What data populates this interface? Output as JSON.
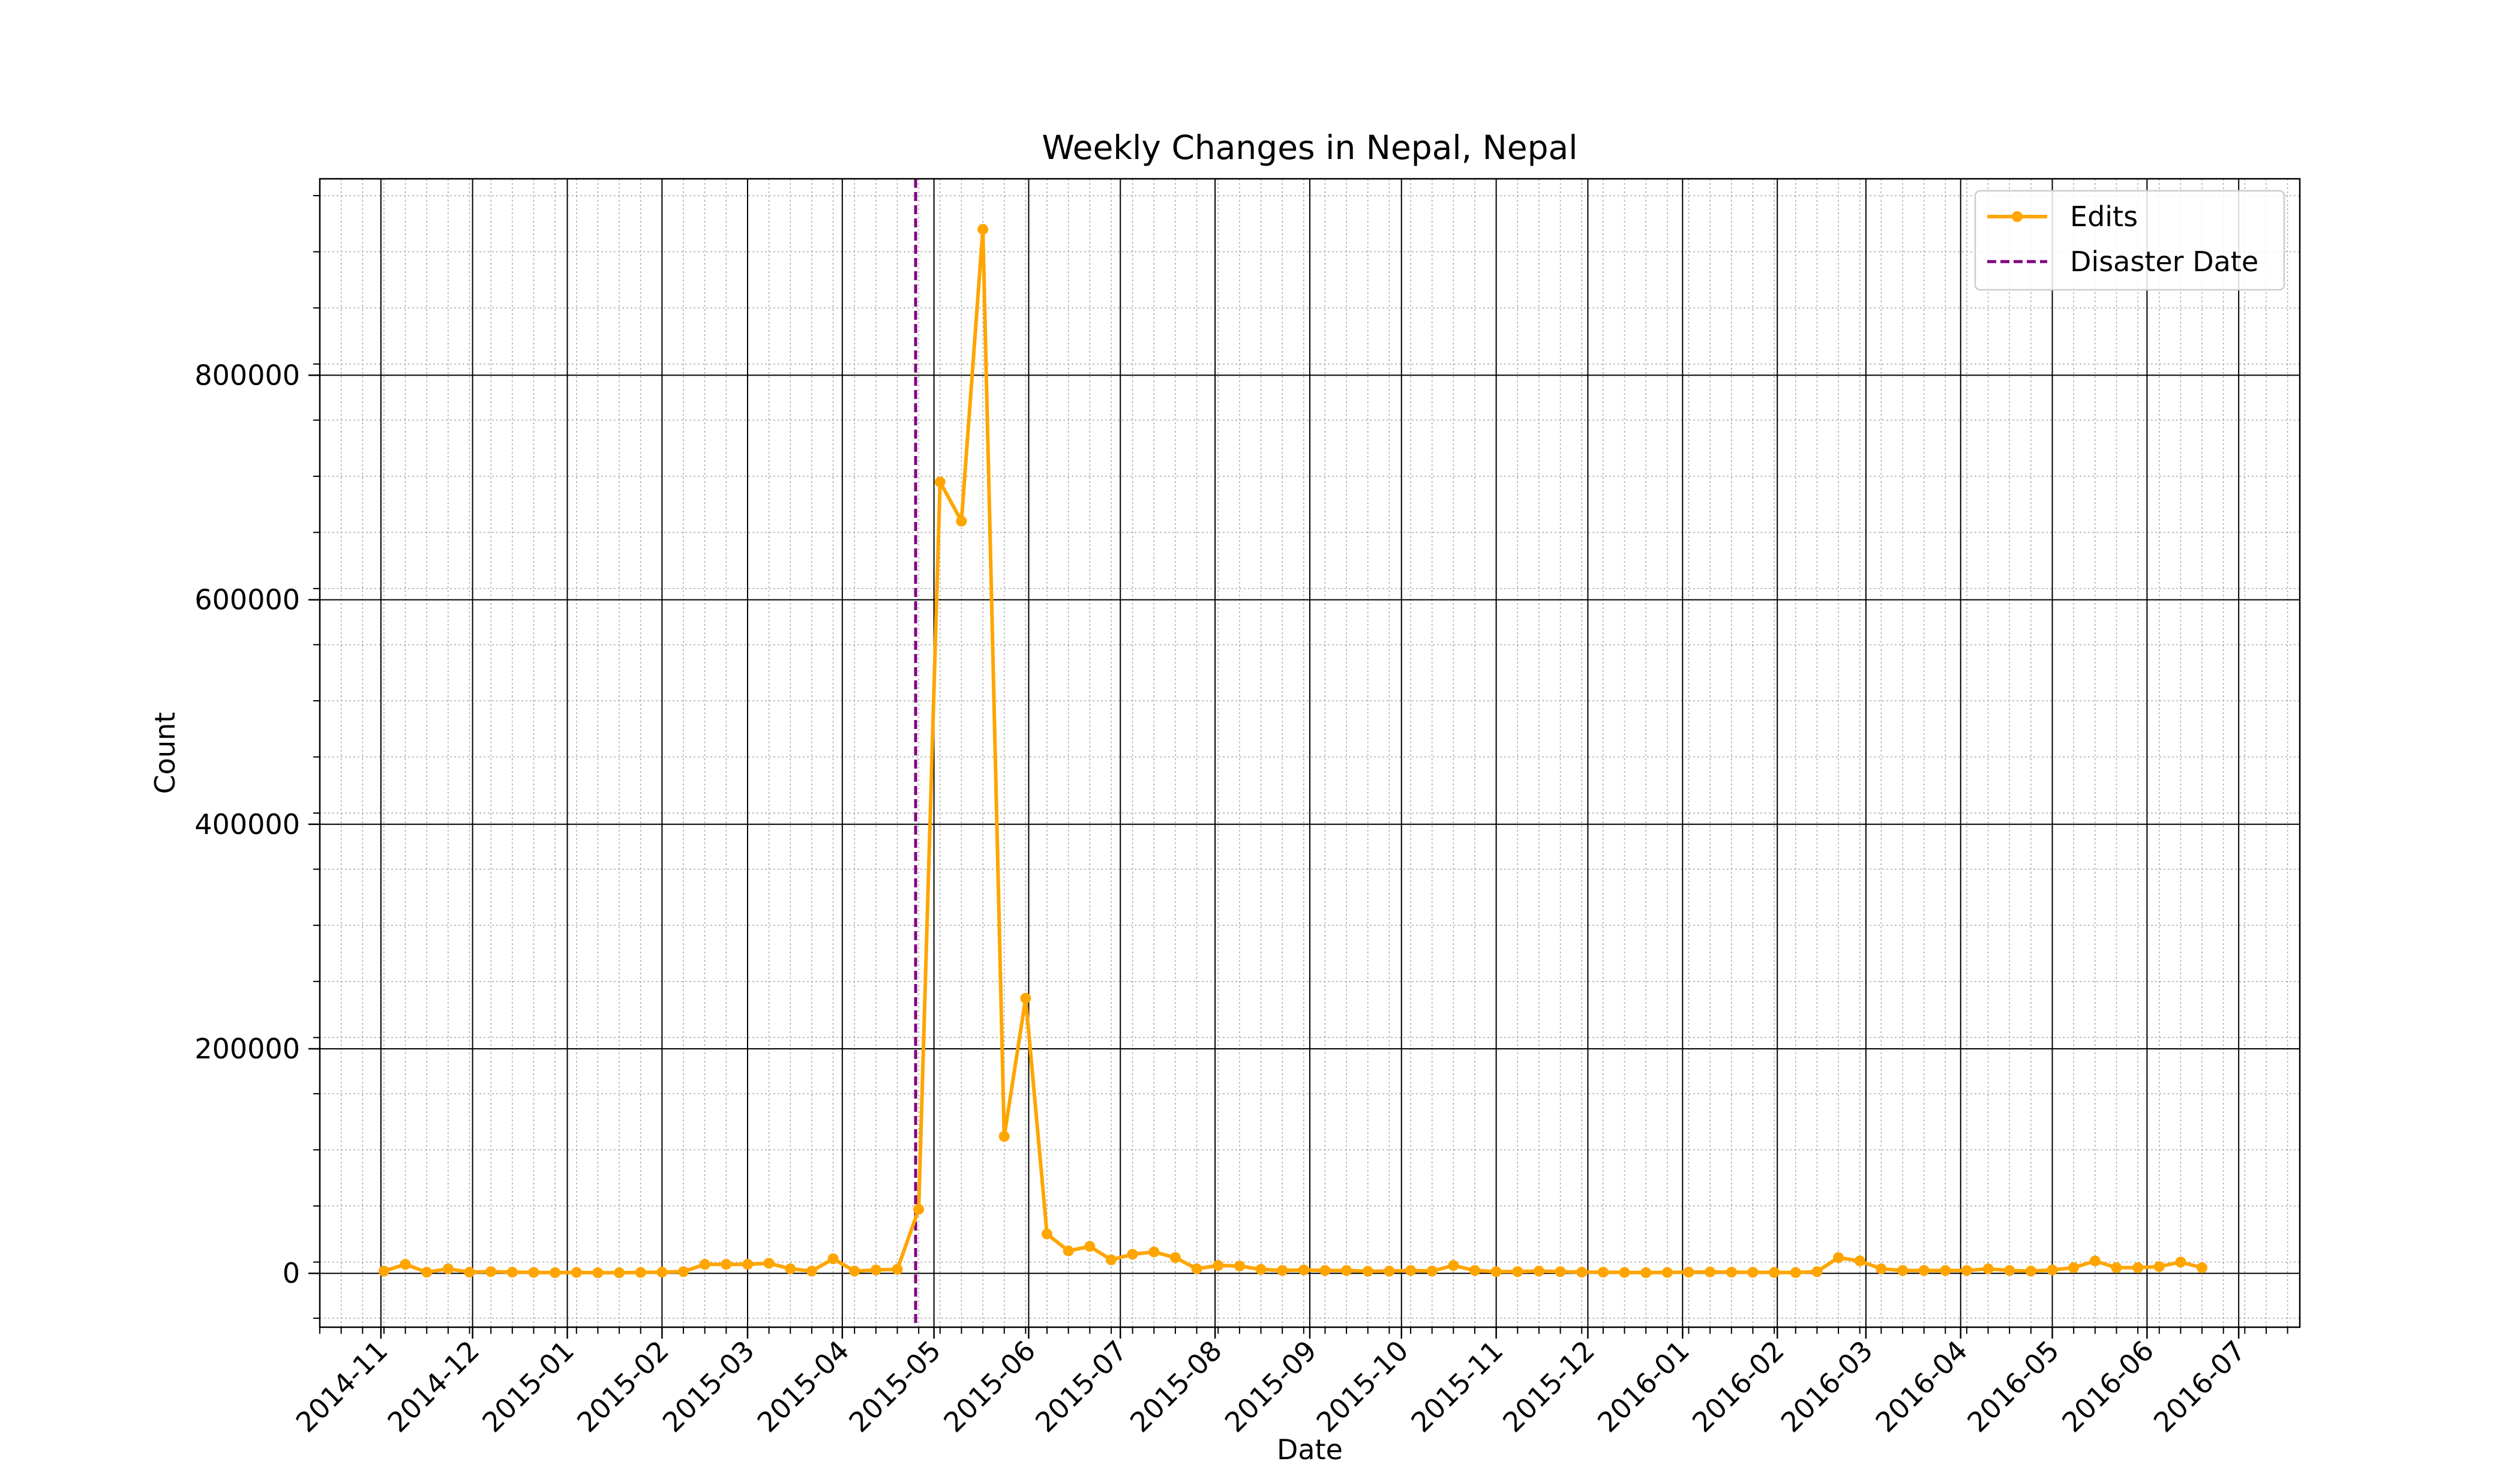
{
  "chart_data": {
    "type": "line",
    "title": "Weekly Changes in Nepal, Nepal",
    "xlabel": "Date",
    "ylabel": "Count",
    "x_tick_labels": [
      "2014-11",
      "2014-12",
      "2015-01",
      "2015-02",
      "2015-03",
      "2015-04",
      "2015-05",
      "2015-06",
      "2015-07",
      "2015-08",
      "2015-09",
      "2015-10",
      "2015-11",
      "2015-12",
      "2016-01",
      "2016-02",
      "2016-03",
      "2016-04",
      "2016-05",
      "2016-06",
      "2016-07"
    ],
    "y_tick_labels": [
      "0",
      "200000",
      "400000",
      "600000",
      "800000"
    ],
    "y_ticks": [
      0,
      200000,
      400000,
      600000,
      800000
    ],
    "xlim": [
      "2014-10-12",
      "2016-07-21"
    ],
    "ylim": [
      -48000,
      975000
    ],
    "grid": "major and minor",
    "legend_position": "top-right",
    "series": [
      {
        "name": "Edits",
        "color": "#FFA500",
        "marker": "circle",
        "x": [
          "2014-11-02",
          "2014-11-09",
          "2014-11-16",
          "2014-11-23",
          "2014-11-30",
          "2014-12-07",
          "2014-12-14",
          "2014-12-21",
          "2014-12-28",
          "2015-01-04",
          "2015-01-11",
          "2015-01-18",
          "2015-01-25",
          "2015-02-01",
          "2015-02-08",
          "2015-02-15",
          "2015-02-22",
          "2015-03-01",
          "2015-03-08",
          "2015-03-15",
          "2015-03-22",
          "2015-03-29",
          "2015-04-05",
          "2015-04-12",
          "2015-04-19",
          "2015-04-26",
          "2015-05-03",
          "2015-05-10",
          "2015-05-17",
          "2015-05-24",
          "2015-05-31",
          "2015-06-07",
          "2015-06-14",
          "2015-06-21",
          "2015-06-28",
          "2015-07-05",
          "2015-07-12",
          "2015-07-19",
          "2015-07-26",
          "2015-08-02",
          "2015-08-09",
          "2015-08-16",
          "2015-08-23",
          "2015-08-30",
          "2015-09-06",
          "2015-09-13",
          "2015-09-20",
          "2015-09-27",
          "2015-10-04",
          "2015-10-11",
          "2015-10-18",
          "2015-10-25",
          "2015-11-01",
          "2015-11-08",
          "2015-11-15",
          "2015-11-22",
          "2015-11-29",
          "2015-12-06",
          "2015-12-13",
          "2015-12-20",
          "2015-12-27",
          "2016-01-03",
          "2016-01-10",
          "2016-01-17",
          "2016-01-24",
          "2016-01-31",
          "2016-02-07",
          "2016-02-14",
          "2016-02-21",
          "2016-02-28",
          "2016-03-06",
          "2016-03-13",
          "2016-03-20",
          "2016-03-27",
          "2016-04-03",
          "2016-04-10",
          "2016-04-17",
          "2016-04-24",
          "2016-05-01",
          "2016-05-08",
          "2016-05-15",
          "2016-05-22",
          "2016-05-29",
          "2016-06-05",
          "2016-06-12",
          "2016-06-19"
        ],
        "y": [
          2000,
          8000,
          1000,
          4000,
          1000,
          1500,
          1000,
          800,
          600,
          800,
          500,
          500,
          800,
          1000,
          1500,
          8000,
          8000,
          8000,
          9000,
          4000,
          2000,
          13000,
          2000,
          3000,
          3500,
          57000,
          705000,
          670000,
          930000,
          122000,
          245000,
          35000,
          20000,
          24000,
          12000,
          17000,
          19000,
          14000,
          4000,
          7000,
          6500,
          3500,
          2500,
          3000,
          2500,
          2500,
          1800,
          2000,
          2500,
          2000,
          7000,
          2500,
          1500,
          1500,
          2000,
          1500,
          1000,
          1000,
          800,
          600,
          800,
          1000,
          1200,
          1000,
          900,
          800,
          700,
          1500,
          14000,
          11000,
          4000,
          2500,
          2500,
          2500,
          2500,
          4000,
          2500,
          2000,
          3000,
          5000,
          11000,
          5000,
          5000,
          6000,
          10000,
          5000
        ]
      }
    ],
    "annotations": [
      {
        "name": "Disaster Date",
        "type": "vline",
        "x": "2015-04-25",
        "color": "#800080",
        "style": "dashed"
      }
    ]
  }
}
